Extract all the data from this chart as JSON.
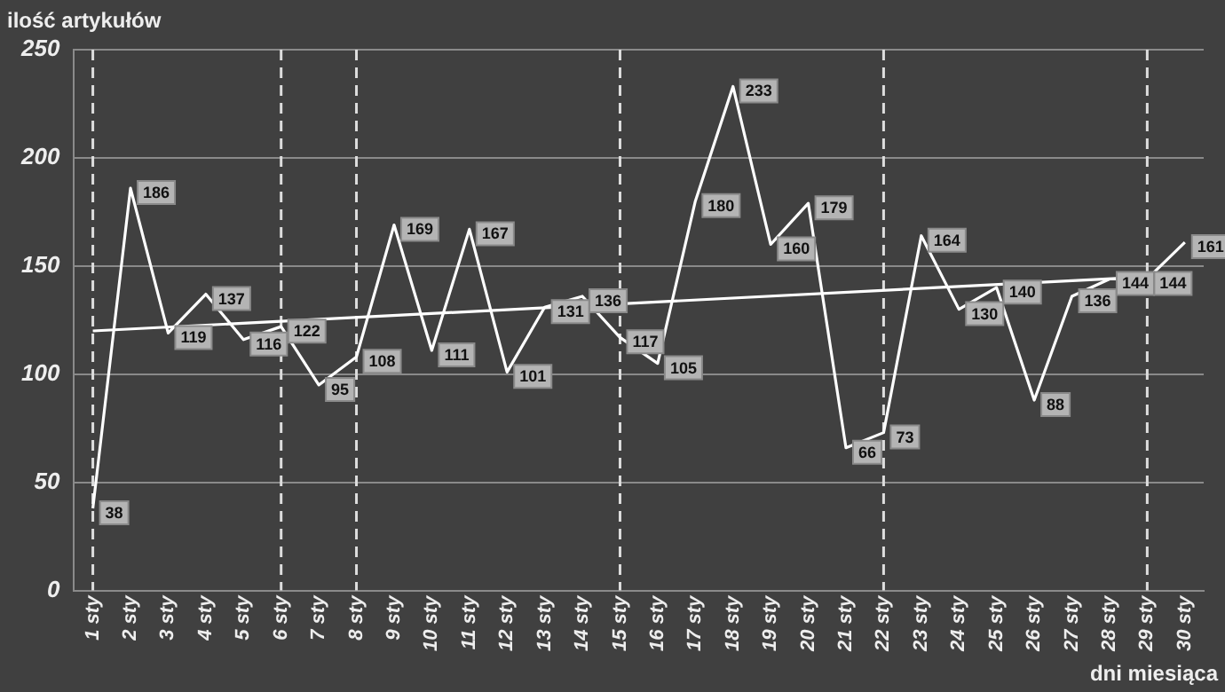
{
  "chart_data": {
    "type": "line",
    "xlabel": "dni miesiąca",
    "ylabel": "ilość artykułów",
    "categories": [
      "1 sty",
      "2 sty",
      "3 sty",
      "4 sty",
      "5 sty",
      "6 sty",
      "7 sty",
      "8 sty",
      "9 sty",
      "10 sty",
      "11 sty",
      "12 sty",
      "13 sty",
      "14 sty",
      "15 sty",
      "16 sty",
      "17 sty",
      "18 sty",
      "19 sty",
      "20 sty",
      "21 sty",
      "22 sty",
      "23 sty",
      "24 sty",
      "25 sty",
      "26 sty",
      "27 sty",
      "28 sty",
      "29 sty",
      "30 sty"
    ],
    "series": [
      {
        "color": "#ffffff",
        "values": [
          38,
          186,
          119,
          137,
          116,
          122,
          95,
          108,
          169,
          111,
          167,
          101,
          131,
          136,
          117,
          105,
          180,
          233,
          160,
          179,
          66,
          73,
          164,
          130,
          140,
          88,
          136,
          144,
          144,
          161
        ],
        "value_labels": [
          "38",
          "186",
          "119",
          "137",
          "116",
          "122",
          "95",
          "108",
          "169",
          "111",
          "167",
          "101",
          "131",
          "136",
          "117",
          "105",
          "180",
          "233",
          "160",
          "179",
          "66",
          "73",
          "164",
          "130",
          "140",
          "88",
          "136",
          "144",
          "144",
          "161"
        ]
      },
      {
        "type": "line",
        "color": "#ffffff",
        "x": [
          "1 sty",
          "29 sty"
        ],
        "values": [
          120,
          145
        ]
      }
    ],
    "ylim": [
      0,
      250
    ],
    "yticks": [
      0,
      50,
      100,
      150,
      200,
      250
    ],
    "grid": "y",
    "legend": false,
    "marker": "none",
    "line_style": "solid",
    "ref_lines": [
      {
        "axis": "x",
        "value": "1 sty",
        "color": "#dddddd",
        "line_style": "dashed"
      },
      {
        "axis": "x",
        "value": "6 sty",
        "color": "#dddddd",
        "line_style": "dashed"
      },
      {
        "axis": "x",
        "value": "8 sty",
        "color": "#dddddd",
        "line_style": "dashed"
      },
      {
        "axis": "x",
        "value": "15 sty",
        "color": "#dddddd",
        "line_style": "dashed"
      },
      {
        "axis": "x",
        "value": "22 sty",
        "color": "#dddddd",
        "line_style": "dashed"
      },
      {
        "axis": "x",
        "value": "29 sty",
        "color": "#dddddd",
        "line_style": "dashed"
      }
    ]
  }
}
